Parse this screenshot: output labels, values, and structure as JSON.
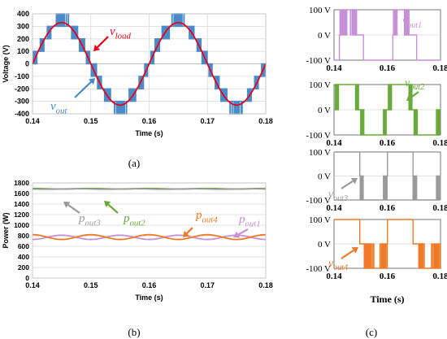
{
  "figure": {
    "captions": {
      "a": "(a)",
      "b": "(b)",
      "c": "(c)"
    }
  },
  "colors": {
    "vout": "#4a8cc7",
    "vload": "#e8001c",
    "pout1": "#c78fd6",
    "pout2": "#6aaa3a",
    "pout3": "#9a9a9a",
    "pout4": "#ee7a27",
    "grid": "#d9d9d9"
  },
  "chart_data": [
    {
      "id": "a",
      "type": "line",
      "title": "",
      "xlabel": "Time (s)",
      "ylabel": "Voltage (V)",
      "xlim": [
        0.14,
        0.18
      ],
      "ylim": [
        -400,
        400
      ],
      "xticks": [
        "0.14",
        "0.15",
        "0.16",
        "0.17",
        "0.18"
      ],
      "yticks": [
        "400",
        "300",
        "200",
        "100",
        "0",
        "-100",
        "-200",
        "-300",
        "-400"
      ],
      "grid": true,
      "series": [
        {
          "name": "v_load",
          "label_main": "v",
          "label_sub": "load",
          "color": "#e8001c",
          "shape": "sine",
          "amplitude": 330,
          "frequency_hz": 50,
          "phase_s": 0.14
        },
        {
          "name": "v_out",
          "label_main": "v",
          "label_sub": "out",
          "color": "#4a8cc7",
          "shape": "staircase",
          "step_v": 100,
          "levels": [
            -400,
            -300,
            -200,
            -100,
            0,
            100,
            200,
            300,
            400
          ]
        }
      ]
    },
    {
      "id": "b",
      "type": "line",
      "title": "",
      "xlabel": "Time (s)",
      "ylabel": "Power (W)",
      "xlim": [
        0.14,
        0.18
      ],
      "ylim": [
        0,
        1800
      ],
      "xticks": [
        "0.14",
        "0.15",
        "0.16",
        "0.17",
        "0.18"
      ],
      "yticks": [
        "1800",
        "1600",
        "1400",
        "1200",
        "1000",
        "800",
        "600",
        "400",
        "200",
        "0"
      ],
      "grid": true,
      "series": [
        {
          "name": "p_out1",
          "label_main": "p",
          "label_sub": "out1",
          "color": "#c78fd6",
          "mean": 770,
          "ripple": 40,
          "phase": 0.5
        },
        {
          "name": "p_out2",
          "label_main": "p",
          "label_sub": "out2",
          "color": "#6aaa3a",
          "mean": 1690,
          "ripple": 6,
          "phase": 0
        },
        {
          "name": "p_out3",
          "label_main": "p",
          "label_sub": "out3",
          "color": "#9a9a9a",
          "mean": 1685,
          "ripple": 4,
          "phase": 0.25
        },
        {
          "name": "p_out4",
          "label_main": "p",
          "label_sub": "out4",
          "color": "#ee7a27",
          "mean": 775,
          "ripple": 45,
          "phase": 0
        }
      ]
    },
    {
      "id": "c1",
      "type": "line",
      "xlabel": "",
      "ylim": [
        -100,
        100
      ],
      "yticks": [
        "100 V",
        "0 V",
        "-100 V"
      ],
      "xticks": [
        "0.14",
        "0.16",
        "0.18"
      ],
      "series": [
        {
          "name": "v_out1",
          "label_main": "v",
          "label_sub": "out1",
          "color": "#c78fd6"
        }
      ]
    },
    {
      "id": "c2",
      "type": "line",
      "xlabel": "",
      "ylim": [
        -100,
        100
      ],
      "yticks": [
        "100 V",
        "0 V",
        "-100 V"
      ],
      "xticks": [
        "0.14",
        "0.16",
        "0.18"
      ],
      "series": [
        {
          "name": "v_out2",
          "label_main": "v",
          "label_sub": "out2",
          "color": "#6aaa3a"
        }
      ]
    },
    {
      "id": "c3",
      "type": "line",
      "xlabel": "",
      "ylim": [
        -100,
        100
      ],
      "yticks": [
        "100 V",
        "0 V",
        "-100 V"
      ],
      "xticks": [
        "0.14",
        "0.16",
        "0.18"
      ],
      "series": [
        {
          "name": "v_out3",
          "label_main": "v",
          "label_sub": "out3",
          "color": "#9a9a9a"
        }
      ]
    },
    {
      "id": "c4",
      "type": "line",
      "xlabel": "Time (s)",
      "ylim": [
        -100,
        100
      ],
      "yticks": [
        "100 V",
        "0 V",
        "-100 V"
      ],
      "xticks": [
        "0.14",
        "0.16",
        "0.18"
      ],
      "series": [
        {
          "name": "v_out4",
          "label_main": "v",
          "label_sub": "out4",
          "color": "#ee7a27"
        }
      ]
    }
  ]
}
